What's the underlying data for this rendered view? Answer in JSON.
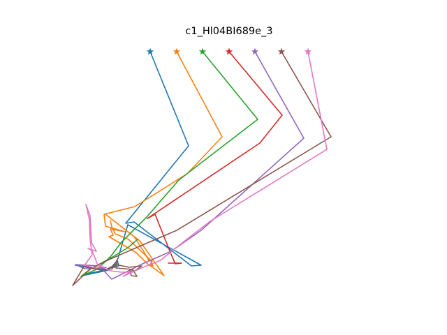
{
  "chart_data": {
    "type": "line",
    "title": "c1_Hl04BI689e_3",
    "xlabel": "",
    "ylabel": "",
    "axes_visible": false,
    "grid": false,
    "legend": "none",
    "start_marker": "star",
    "series": [
      {
        "color": "#1f77b4",
        "points": [
          [
            215,
            74
          ],
          [
            270,
            209
          ],
          [
            180,
            320
          ],
          [
            192,
            318
          ],
          [
            274,
            381
          ],
          [
            288,
            380
          ],
          [
            183,
            322
          ],
          [
            166,
            380
          ],
          [
            150,
            388
          ],
          [
            108,
            380
          ],
          [
            155,
            386
          ],
          [
            121,
            393
          ],
          [
            118,
            395
          ],
          [
            156,
            387
          ],
          [
            168,
            373
          ],
          [
            170,
            381
          ],
          [
            160,
            384
          ]
        ]
      },
      {
        "color": "#ff7f0e",
        "points": [
          [
            253,
            74
          ],
          [
            318,
            196
          ],
          [
            268,
            249
          ],
          [
            193,
            296
          ],
          [
            149,
            307
          ],
          [
            151,
            324
          ],
          [
            179,
            332
          ],
          [
            158,
            328
          ],
          [
            162,
            337
          ],
          [
            156,
            339
          ],
          [
            195,
            362
          ],
          [
            210,
            377
          ],
          [
            235,
            395
          ],
          [
            200,
            345
          ],
          [
            151,
            307
          ],
          [
            192,
            339
          ],
          [
            205,
            359
          ],
          [
            213,
            373
          ],
          [
            218,
            374
          ],
          [
            215,
            379
          ],
          [
            219,
            381
          ],
          [
            215,
            372
          ],
          [
            184,
            343
          ],
          [
            165,
            335
          ],
          [
            160,
            325
          ],
          [
            158,
            316
          ]
        ]
      },
      {
        "color": "#2ca02c",
        "points": [
          [
            290,
            74
          ],
          [
            369,
            171
          ],
          [
            256,
            258
          ],
          [
            210,
            311
          ],
          [
            174,
            347
          ],
          [
            158,
            368
          ],
          [
            140,
            385
          ],
          [
            116,
            396
          ],
          [
            130,
            385
          ],
          [
            158,
            370
          ],
          [
            183,
            355
          ],
          [
            197,
            343
          ]
        ]
      },
      {
        "color": "#d62728",
        "points": [
          [
            328,
            74
          ],
          [
            404,
            165
          ],
          [
            372,
            205
          ],
          [
            211,
            313
          ],
          [
            222,
            307
          ],
          [
            244,
            362
          ],
          [
            251,
            378
          ],
          [
            260,
            377
          ],
          [
            241,
            377
          ]
        ]
      },
      {
        "color": "#9467bd",
        "points": [
          [
            365,
            74
          ],
          [
            435,
            198
          ],
          [
            346,
            278
          ],
          [
            288,
            330
          ],
          [
            245,
            360
          ],
          [
            202,
            379
          ],
          [
            160,
            400
          ],
          [
            142,
            381
          ],
          [
            108,
            379
          ],
          [
            121,
            385
          ],
          [
            140,
            385
          ],
          [
            152,
            383
          ]
        ]
      },
      {
        "color": "#8c564b",
        "points": [
          [
            403,
            74
          ],
          [
            474,
            196
          ],
          [
            253,
            330
          ],
          [
            195,
            355
          ],
          [
            156,
            372
          ],
          [
            130,
            385
          ],
          [
            104,
            409
          ],
          [
            120,
            382
          ],
          [
            150,
            387
          ],
          [
            166,
            379
          ],
          [
            185,
            383
          ],
          [
            203,
            381
          ],
          [
            193,
            388
          ],
          [
            186,
            388
          ],
          [
            188,
            395
          ],
          [
            196,
            396
          ],
          [
            190,
            386
          ],
          [
            166,
            384
          ],
          [
            168,
            372
          ],
          [
            160,
            386
          ]
        ]
      },
      {
        "color": "#e377c2",
        "points": [
          [
            441,
            74
          ],
          [
            468,
            214
          ],
          [
            301,
            317
          ],
          [
            248,
            358
          ],
          [
            230,
            373
          ],
          [
            200,
            385
          ],
          [
            176,
            396
          ],
          [
            186,
            390
          ],
          [
            174,
            390
          ],
          [
            158,
            388
          ],
          [
            140,
            380
          ],
          [
            132,
            359
          ],
          [
            126,
            356
          ],
          [
            138,
            360
          ],
          [
            131,
            348
          ],
          [
            129,
            309
          ],
          [
            123,
            293
          ],
          [
            128,
            315
          ],
          [
            129,
            343
          ],
          [
            132,
            365
          ],
          [
            121,
            380
          ],
          [
            137,
            384
          ],
          [
            148,
            382
          ]
        ]
      }
    ]
  }
}
